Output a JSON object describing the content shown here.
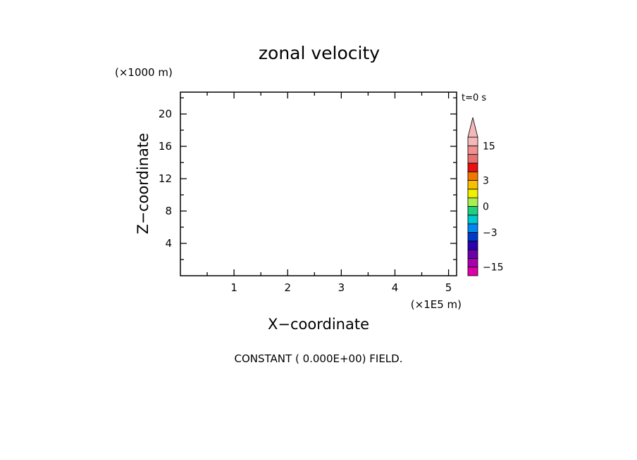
{
  "chart_data": {
    "type": "heatmap",
    "title": "zonal velocity",
    "xlabel": "X−coordinate",
    "ylabel": "Z−coordinate",
    "x_unit_label": "(×1E5 m)",
    "y_unit_label": "(×1000 m)",
    "time_label": "t=0 s",
    "note": "CONSTANT ( 0.000E+00) FIELD.",
    "xlim": [
      0,
      5.15
    ],
    "ylim": [
      0,
      22.7
    ],
    "x_ticks": [
      1,
      2,
      3,
      4,
      5
    ],
    "y_ticks": [
      4,
      8,
      12,
      16,
      20
    ],
    "x_tick_labels": [
      "1",
      "2",
      "3",
      "4",
      "5"
    ],
    "y_tick_labels": [
      "4",
      "8",
      "12",
      "16",
      "20"
    ],
    "field_value": 0,
    "colorbar": {
      "levels": [
        -19,
        -15,
        -11,
        -7,
        -5,
        -3,
        -2,
        -1,
        0,
        1,
        2,
        3,
        5,
        7,
        11,
        15,
        19
      ],
      "colors": [
        "#e000a8",
        "#a800b0",
        "#6a00a8",
        "#2a00b0",
        "#0038c8",
        "#0088f0",
        "#00c8d0",
        "#20d080",
        "#a8f050",
        "#f0f000",
        "#f8c000",
        "#f07800",
        "#e81010",
        "#e87070",
        "#f09090",
        "#f4b8b8"
      ],
      "extend_max": true,
      "labels": [
        {
          "text": "15",
          "value": 15
        },
        {
          "text": "3",
          "value": 3
        },
        {
          "text": "0",
          "value": 0
        },
        {
          "text": "−3",
          "value": -3
        },
        {
          "text": "−15",
          "value": -15
        }
      ]
    }
  }
}
